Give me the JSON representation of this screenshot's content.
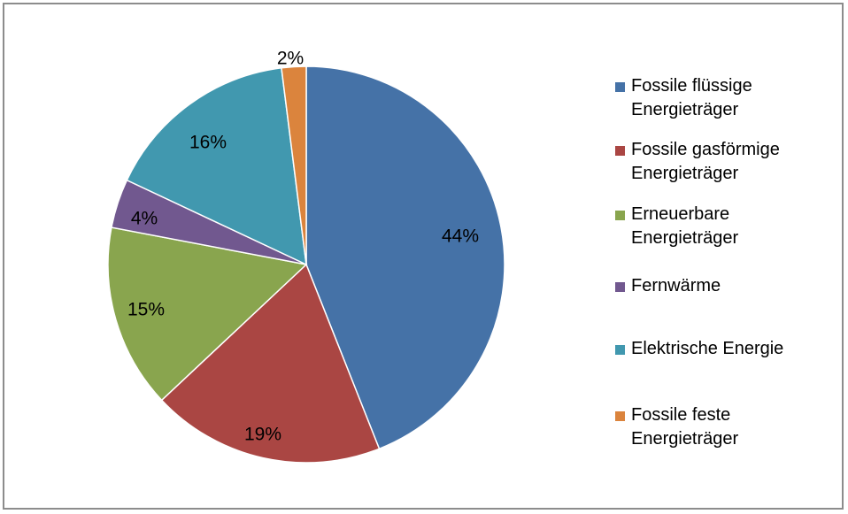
{
  "chart_data": {
    "type": "pie",
    "slices": [
      {
        "name": "Fossile flüssige Energieträger",
        "legend_lines": [
          "Fossile flüssige",
          "Energieträger"
        ],
        "value": 44,
        "label": "44%",
        "color": "#4572A7"
      },
      {
        "name": "Fossile gasförmige Energieträger",
        "legend_lines": [
          "Fossile gasförmige",
          "Energieträger"
        ],
        "value": 19,
        "label": "19%",
        "color": "#AA4643"
      },
      {
        "name": "Erneuerbare Energieträger",
        "legend_lines": [
          "Erneuerbare",
          "Energieträger"
        ],
        "value": 15,
        "label": "15%",
        "color": "#89A54E"
      },
      {
        "name": "Fernwärme",
        "legend_lines": [
          "Fernwärme"
        ],
        "value": 4,
        "label": "4%",
        "color": "#71588F"
      },
      {
        "name": "Elektrische Energie",
        "legend_lines": [
          "Elektrische Energie"
        ],
        "value": 16,
        "label": "16%",
        "color": "#4198AF"
      },
      {
        "name": "Fossile feste Energieträger",
        "legend_lines": [
          "Fossile feste",
          "Energieträger"
        ],
        "value": 2,
        "label": "2%",
        "color": "#DB843D"
      }
    ],
    "legend_position": "right"
  }
}
